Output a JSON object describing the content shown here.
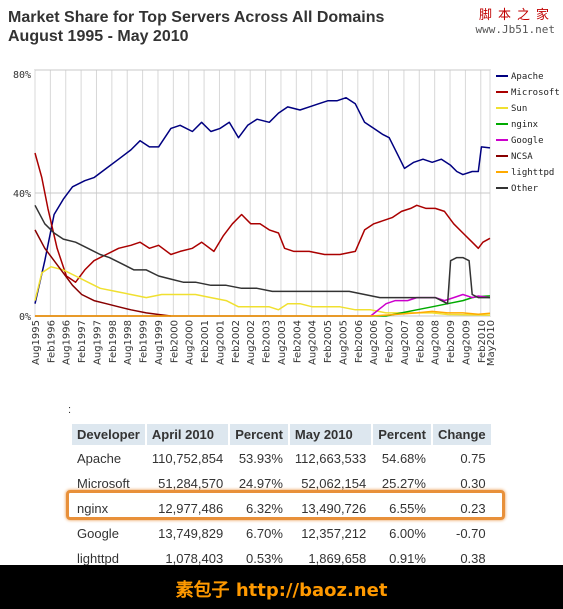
{
  "header": {
    "title_line1": "Market Share for Top Servers Across All Domains",
    "title_line2": "August 1995 - May 2010"
  },
  "watermark_top": {
    "line1": "脚本之家",
    "line2": "www.Jb51.net"
  },
  "footer": {
    "text": "素包子 http://baoz.net"
  },
  "table": {
    "caption": ":",
    "headers": [
      "Developer",
      "April 2010",
      "Percent",
      "May 2010",
      "Percent",
      "Change"
    ],
    "rows": [
      [
        "Apache",
        "110,752,854",
        "53.93%",
        "112,663,533",
        "54.68%",
        "0.75"
      ],
      [
        "Microsoft",
        "51,284,570",
        "24.97%",
        "52,062,154",
        "25.27%",
        "0.30"
      ],
      [
        "nginx",
        "12,977,486",
        "6.32%",
        "13,490,726",
        "6.55%",
        "0.23"
      ],
      [
        "Google",
        "13,749,829",
        "6.70%",
        "12,357,212",
        "6.00%",
        "-0.70"
      ],
      [
        "lighttpd",
        "1,078,403",
        "0.53%",
        "1,869,658",
        "0.91%",
        "0.38"
      ]
    ],
    "highlight_row": "nginx",
    "highlight_color": "#e8903a"
  },
  "chart_data": {
    "type": "line",
    "title": "Market Share for Top Servers Across All Domains August 1995 - May 2010",
    "ylim": [
      0,
      80
    ],
    "y_ticks": [
      "0%",
      "40%",
      "80%"
    ],
    "y_tick_values": [
      0,
      40,
      80
    ],
    "x_tick_labels": [
      "Aug1995",
      "Feb1996",
      "Aug1996",
      "Feb1997",
      "Aug1997",
      "Feb1998",
      "Aug1998",
      "Feb1999",
      "Aug1999",
      "Feb2000",
      "Aug2000",
      "Feb2001",
      "Aug2001",
      "Feb2002",
      "Aug2002",
      "Feb2003",
      "Aug2003",
      "Feb2004",
      "Aug2004",
      "Feb2005",
      "Aug2005",
      "Feb2006",
      "Aug2006",
      "Feb2007",
      "Aug2007",
      "Feb2008",
      "Aug2008",
      "Feb2009",
      "Aug2009",
      "Feb2010",
      "May2010"
    ],
    "grid": true,
    "legend_position": "right",
    "series": [
      {
        "name": "Apache",
        "color": "#000080",
        "points": [
          [
            1995.58,
            4
          ],
          [
            1995.9,
            18
          ],
          [
            1996.2,
            33
          ],
          [
            1996.5,
            38
          ],
          [
            1996.8,
            42
          ],
          [
            1997.2,
            44
          ],
          [
            1997.5,
            45
          ],
          [
            1997.9,
            48
          ],
          [
            1998.3,
            51
          ],
          [
            1998.7,
            54
          ],
          [
            1999.0,
            57
          ],
          [
            1999.3,
            55
          ],
          [
            1999.6,
            55
          ],
          [
            2000.0,
            61
          ],
          [
            2000.3,
            62
          ],
          [
            2000.7,
            60
          ],
          [
            2001.0,
            63
          ],
          [
            2001.3,
            60
          ],
          [
            2001.6,
            61
          ],
          [
            2001.9,
            63
          ],
          [
            2002.2,
            58
          ],
          [
            2002.5,
            62
          ],
          [
            2002.8,
            64
          ],
          [
            2003.2,
            63
          ],
          [
            2003.5,
            66
          ],
          [
            2003.8,
            68
          ],
          [
            2004.2,
            67
          ],
          [
            2004.5,
            68
          ],
          [
            2004.8,
            69
          ],
          [
            2005.1,
            70
          ],
          [
            2005.4,
            70
          ],
          [
            2005.7,
            71
          ],
          [
            2006.0,
            69
          ],
          [
            2006.3,
            63
          ],
          [
            2006.6,
            61
          ],
          [
            2006.9,
            59
          ],
          [
            2007.1,
            58
          ],
          [
            2007.4,
            52
          ],
          [
            2007.6,
            48
          ],
          [
            2007.9,
            50
          ],
          [
            2008.2,
            51
          ],
          [
            2008.5,
            50
          ],
          [
            2008.8,
            51
          ],
          [
            2009.1,
            49
          ],
          [
            2009.3,
            47
          ],
          [
            2009.5,
            46
          ],
          [
            2009.8,
            47
          ],
          [
            2010.0,
            47
          ],
          [
            2010.1,
            55
          ],
          [
            2010.38,
            54.68
          ]
        ]
      },
      {
        "name": "Microsoft",
        "color": "#aa0000",
        "points": [
          [
            1995.58,
            53
          ],
          [
            1995.8,
            45
          ],
          [
            1996.0,
            35
          ],
          [
            1996.3,
            22
          ],
          [
            1996.6,
            13
          ],
          [
            1996.9,
            11
          ],
          [
            1997.2,
            15
          ],
          [
            1997.5,
            18
          ],
          [
            1997.9,
            20
          ],
          [
            1998.3,
            22
          ],
          [
            1998.7,
            23
          ],
          [
            1999.0,
            24
          ],
          [
            1999.3,
            22
          ],
          [
            1999.6,
            23
          ],
          [
            2000.0,
            20
          ],
          [
            2000.3,
            21
          ],
          [
            2000.7,
            22
          ],
          [
            2001.0,
            24
          ],
          [
            2001.4,
            21
          ],
          [
            2001.7,
            26
          ],
          [
            2002.0,
            30
          ],
          [
            2002.3,
            33
          ],
          [
            2002.6,
            30
          ],
          [
            2002.9,
            30
          ],
          [
            2003.2,
            28
          ],
          [
            2003.5,
            27
          ],
          [
            2003.7,
            22
          ],
          [
            2004.0,
            21
          ],
          [
            2004.5,
            21
          ],
          [
            2005.0,
            20
          ],
          [
            2005.5,
            20
          ],
          [
            2006.0,
            21
          ],
          [
            2006.3,
            28
          ],
          [
            2006.6,
            30
          ],
          [
            2006.9,
            31
          ],
          [
            2007.2,
            32
          ],
          [
            2007.5,
            34
          ],
          [
            2007.8,
            35
          ],
          [
            2008.0,
            36
          ],
          [
            2008.3,
            35
          ],
          [
            2008.6,
            35
          ],
          [
            2008.9,
            34
          ],
          [
            2009.2,
            30
          ],
          [
            2009.5,
            27
          ],
          [
            2009.8,
            24
          ],
          [
            2010.0,
            22
          ],
          [
            2010.15,
            24
          ],
          [
            2010.38,
            25.27
          ]
        ]
      },
      {
        "name": "Sun",
        "color": "#f0e030",
        "points": [
          [
            1995.58,
            5
          ],
          [
            1995.8,
            14
          ],
          [
            1996.1,
            16
          ],
          [
            1996.5,
            15
          ],
          [
            1996.9,
            13
          ],
          [
            1997.3,
            11
          ],
          [
            1997.7,
            9
          ],
          [
            1998.2,
            8
          ],
          [
            1998.7,
            7
          ],
          [
            1999.2,
            6
          ],
          [
            1999.7,
            7
          ],
          [
            2000.2,
            7
          ],
          [
            2000.8,
            7
          ],
          [
            2001.3,
            6
          ],
          [
            2001.8,
            5
          ],
          [
            2002.2,
            3
          ],
          [
            2002.7,
            3
          ],
          [
            2003.2,
            3
          ],
          [
            2003.5,
            2
          ],
          [
            2003.8,
            4
          ],
          [
            2004.2,
            4
          ],
          [
            2004.6,
            3
          ],
          [
            2005.0,
            3
          ],
          [
            2005.5,
            3
          ],
          [
            2006.0,
            2
          ],
          [
            2006.5,
            2
          ],
          [
            2007.0,
            1
          ],
          [
            2007.5,
            1
          ],
          [
            2008.0,
            1
          ],
          [
            2008.5,
            1
          ],
          [
            2009.0,
            0.5
          ],
          [
            2010.38,
            0.3
          ]
        ]
      },
      {
        "name": "nginx",
        "color": "#00aa00",
        "points": [
          [
            1995.58,
            0
          ],
          [
            2007.0,
            0
          ],
          [
            2007.5,
            1
          ],
          [
            2008.0,
            2
          ],
          [
            2008.5,
            3
          ],
          [
            2009.0,
            4
          ],
          [
            2009.5,
            5
          ],
          [
            2009.8,
            6
          ],
          [
            2010.0,
            6.3
          ],
          [
            2010.38,
            6.55
          ]
        ]
      },
      {
        "name": "Google",
        "color": "#cc00cc",
        "points": [
          [
            1995.58,
            0
          ],
          [
            2006.5,
            0
          ],
          [
            2007.0,
            4
          ],
          [
            2007.3,
            5
          ],
          [
            2007.7,
            5
          ],
          [
            2008.0,
            6
          ],
          [
            2008.3,
            6
          ],
          [
            2008.6,
            6
          ],
          [
            2008.9,
            5
          ],
          [
            2009.2,
            6
          ],
          [
            2009.5,
            7
          ],
          [
            2009.8,
            6
          ],
          [
            2010.0,
            6.5
          ],
          [
            2010.38,
            6.0
          ]
        ]
      },
      {
        "name": "NCSA",
        "color": "#880000",
        "points": [
          [
            1995.58,
            28
          ],
          [
            1995.9,
            22
          ],
          [
            1996.2,
            18
          ],
          [
            1996.5,
            14
          ],
          [
            1996.8,
            10
          ],
          [
            1997.1,
            7
          ],
          [
            1997.5,
            5
          ],
          [
            1997.9,
            4
          ],
          [
            1998.3,
            3
          ],
          [
            1998.7,
            2
          ],
          [
            1999.2,
            1
          ],
          [
            1999.6,
            0.5
          ],
          [
            2000.0,
            0
          ]
        ]
      },
      {
        "name": "lighttpd",
        "color": "#ffaa00",
        "points": [
          [
            1995.58,
            0
          ],
          [
            2006.5,
            0
          ],
          [
            2007.0,
            0.3
          ],
          [
            2008.0,
            1
          ],
          [
            2008.5,
            1.5
          ],
          [
            2009.0,
            1
          ],
          [
            2009.5,
            1
          ],
          [
            2010.0,
            0.6
          ],
          [
            2010.38,
            0.91
          ]
        ]
      },
      {
        "name": "Other",
        "color": "#333333",
        "points": [
          [
            1995.58,
            36
          ],
          [
            1995.9,
            30
          ],
          [
            1996.2,
            27
          ],
          [
            1996.5,
            25
          ],
          [
            1996.9,
            24
          ],
          [
            1997.3,
            22
          ],
          [
            1997.7,
            20
          ],
          [
            1998.0,
            19
          ],
          [
            1998.4,
            17
          ],
          [
            1998.8,
            15
          ],
          [
            1999.2,
            15
          ],
          [
            1999.6,
            13
          ],
          [
            2000.0,
            12
          ],
          [
            2000.4,
            11
          ],
          [
            2000.8,
            11
          ],
          [
            2001.3,
            10
          ],
          [
            2001.8,
            10
          ],
          [
            2002.3,
            9
          ],
          [
            2002.8,
            9
          ],
          [
            2003.3,
            8
          ],
          [
            2003.8,
            8
          ],
          [
            2004.3,
            8
          ],
          [
            2004.8,
            8
          ],
          [
            2005.3,
            8
          ],
          [
            2005.8,
            8
          ],
          [
            2006.3,
            7
          ],
          [
            2006.8,
            6
          ],
          [
            2007.3,
            6
          ],
          [
            2007.8,
            6
          ],
          [
            2008.3,
            6
          ],
          [
            2008.6,
            6
          ],
          [
            2008.8,
            5
          ],
          [
            2009.0,
            4
          ],
          [
            2009.1,
            18
          ],
          [
            2009.3,
            19
          ],
          [
            2009.5,
            19
          ],
          [
            2009.7,
            18
          ],
          [
            2009.8,
            7
          ],
          [
            2010.0,
            6
          ],
          [
            2010.38,
            6
          ]
        ]
      }
    ]
  }
}
